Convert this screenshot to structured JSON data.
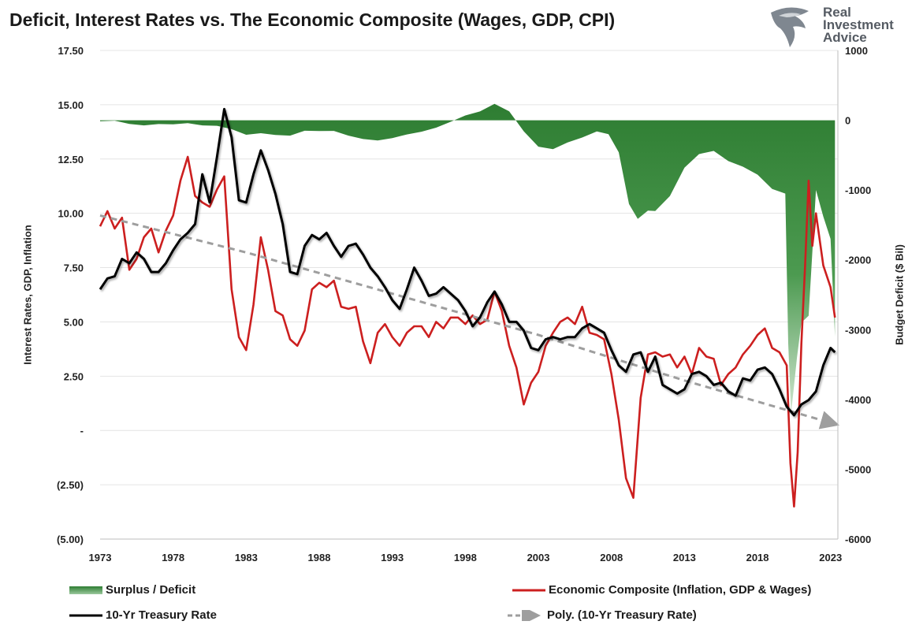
{
  "title": "Deficit, Interest Rates vs. The Economic Composite (Wages, GDP, CPI)",
  "logo": {
    "line1": "Real",
    "line2": "Investment",
    "line3": "Advice",
    "icon": "eagle-head-icon"
  },
  "colors": {
    "deficit": "#2e7d32",
    "economic": "#cc1f1f",
    "treasury": "#000000",
    "poly": "#9e9e9e"
  },
  "chart_data": {
    "type": "line",
    "title": "Deficit, Interest Rates vs. The Economic Composite (Wages, GDP, CPI)",
    "ylabel": "Interest Rates, GDP, Inflation",
    "y2label": "Budget Deficit ($ Bil)",
    "xlim": [
      1973,
      2023.5
    ],
    "ylim": [
      -5,
      17.5
    ],
    "y2lim": [
      -6000,
      1000
    ],
    "x_ticks": [
      "1973",
      "1978",
      "1983",
      "1988",
      "1993",
      "1998",
      "2003",
      "2008",
      "2013",
      "2018",
      "2023"
    ],
    "y_ticks": [
      "17.50",
      "15.00",
      "12.50",
      "10.00",
      "7.50",
      "5.00",
      "2.50",
      "-",
      "(2.50)",
      "(5.00)"
    ],
    "y2_ticks": [
      "1000",
      "0",
      "-1000",
      "-2000",
      "-3000",
      "-4000",
      "-5000",
      "-6000"
    ],
    "grid": true,
    "legend_position": "bottom",
    "series": [
      {
        "name": "Surplus / Deficit",
        "type": "area",
        "axis": "right",
        "x": [
          1973,
          1974,
          1975,
          1976,
          1977,
          1978,
          1979,
          1980,
          1981,
          1982,
          1983,
          1984,
          1985,
          1986,
          1987,
          1988,
          1989,
          1990,
          1991,
          1992,
          1993,
          1994,
          1995,
          1996,
          1997,
          1998,
          1999,
          2000,
          2001,
          2002,
          2003,
          2004,
          2005,
          2006,
          2007,
          2007.8,
          2008.5,
          2009.2,
          2009.8,
          2010.5,
          2011,
          2012,
          2013,
          2014,
          2015,
          2016,
          2017,
          2018,
          2019,
          2019.9,
          2020.1,
          2020.3,
          2020.7,
          2021,
          2021.5,
          2022,
          2022.5,
          2023,
          2023.3
        ],
        "values": [
          -15,
          -6,
          -53,
          -74,
          -54,
          -59,
          -41,
          -74,
          -79,
          -128,
          -208,
          -185,
          -212,
          -221,
          -150,
          -155,
          -153,
          -221,
          -269,
          -290,
          -255,
          -203,
          -164,
          -107,
          -22,
          69,
          126,
          236,
          128,
          -158,
          -378,
          -413,
          -318,
          -248,
          -161,
          -200,
          -459,
          -1200,
          -1413,
          -1294,
          -1300,
          -1087,
          -680,
          -485,
          -439,
          -585,
          -665,
          -779,
          -984,
          -1050,
          -3200,
          -4200,
          -3400,
          -2900,
          -2800,
          -1000,
          -1380,
          -1700,
          -3100
        ]
      },
      {
        "name": "Economic Composite (Inflation, GDP & Wages)",
        "type": "line",
        "axis": "left",
        "x": [
          1973,
          1973.5,
          1974,
          1974.5,
          1975,
          1975.5,
          1976,
          1976.5,
          1977,
          1977.5,
          1978,
          1978.5,
          1979,
          1979.5,
          1980,
          1980.5,
          1981,
          1981.5,
          1982,
          1982.5,
          1983,
          1983.5,
          1984,
          1984.5,
          1985,
          1985.5,
          1986,
          1986.5,
          1987,
          1987.5,
          1988,
          1988.5,
          1989,
          1989.5,
          1990,
          1990.5,
          1991,
          1991.5,
          1992,
          1992.5,
          1993,
          1993.5,
          1994,
          1994.5,
          1995,
          1995.5,
          1996,
          1996.5,
          1997,
          1997.5,
          1998,
          1998.5,
          1999,
          1999.5,
          2000,
          2000.5,
          2001,
          2001.5,
          2002,
          2002.5,
          2003,
          2003.5,
          2004,
          2004.5,
          2005,
          2005.5,
          2006,
          2006.5,
          2007,
          2007.5,
          2008,
          2008.5,
          2009,
          2009.5,
          2010,
          2010.5,
          2011,
          2011.5,
          2012,
          2012.5,
          2013,
          2013.5,
          2014,
          2014.5,
          2015,
          2015.5,
          2016,
          2016.5,
          2017,
          2017.5,
          2018,
          2018.5,
          2019,
          2019.5,
          2020,
          2020.25,
          2020.5,
          2020.75,
          2021,
          2021.25,
          2021.5,
          2021.75,
          2022,
          2022.5,
          2023,
          2023.3
        ],
        "values": [
          9.4,
          10.1,
          9.3,
          9.8,
          7.4,
          7.9,
          8.9,
          9.3,
          8.2,
          9.2,
          9.9,
          11.5,
          12.6,
          10.8,
          10.5,
          10.3,
          11.1,
          11.7,
          6.5,
          4.3,
          3.7,
          5.8,
          8.9,
          7.4,
          5.5,
          5.3,
          4.2,
          3.9,
          4.6,
          6.5,
          6.8,
          6.6,
          6.9,
          5.7,
          5.6,
          5.7,
          4.1,
          3.1,
          4.5,
          4.9,
          4.3,
          3.9,
          4.5,
          4.8,
          4.8,
          4.3,
          5.0,
          4.7,
          5.2,
          5.2,
          4.9,
          5.3,
          4.9,
          5.1,
          6.4,
          5.5,
          3.9,
          2.9,
          1.2,
          2.2,
          2.7,
          3.9,
          4.5,
          5.0,
          5.2,
          4.9,
          5.7,
          4.5,
          4.4,
          4.2,
          2.6,
          0.5,
          -2.2,
          -3.1,
          1.5,
          3.5,
          3.6,
          3.4,
          3.5,
          2.9,
          3.4,
          2.6,
          3.8,
          3.4,
          3.3,
          2.1,
          2.6,
          2.9,
          3.5,
          3.9,
          4.4,
          4.7,
          3.8,
          3.6,
          3.0,
          -1.5,
          -3.5,
          -1.0,
          4.0,
          7.5,
          11.5,
          8.5,
          10.0,
          7.6,
          6.6,
          5.2
        ]
      },
      {
        "name": "10-Yr Treasury Rate",
        "type": "line",
        "axis": "left",
        "x": [
          1973,
          1973.5,
          1974,
          1974.5,
          1975,
          1975.5,
          1976,
          1976.5,
          1977,
          1977.5,
          1978,
          1978.5,
          1979,
          1979.5,
          1980,
          1980.5,
          1981,
          1981.5,
          1982,
          1982.5,
          1983,
          1983.5,
          1984,
          1984.5,
          1985,
          1985.5,
          1986,
          1986.5,
          1987,
          1987.5,
          1988,
          1988.5,
          1989,
          1989.5,
          1990,
          1990.5,
          1991,
          1991.5,
          1992,
          1992.5,
          1993,
          1993.5,
          1994,
          1994.5,
          1995,
          1995.5,
          1996,
          1996.5,
          1997,
          1997.5,
          1998,
          1998.5,
          1999,
          1999.5,
          2000,
          2000.5,
          2001,
          2001.5,
          2002,
          2002.5,
          2003,
          2003.5,
          2004,
          2004.5,
          2005,
          2005.5,
          2006,
          2006.5,
          2007,
          2007.5,
          2008,
          2008.5,
          2009,
          2009.5,
          2010,
          2010.5,
          2011,
          2011.5,
          2012,
          2012.5,
          2013,
          2013.5,
          2014,
          2014.5,
          2015,
          2015.5,
          2016,
          2016.5,
          2017,
          2017.5,
          2018,
          2018.5,
          2019,
          2019.5,
          2020,
          2020.5,
          2021,
          2021.5,
          2022,
          2022.5,
          2023,
          2023.3
        ],
        "values": [
          6.5,
          7.0,
          7.1,
          7.9,
          7.7,
          8.2,
          7.9,
          7.3,
          7.3,
          7.7,
          8.3,
          8.8,
          9.1,
          9.5,
          11.8,
          10.5,
          12.6,
          14.8,
          13.5,
          10.6,
          10.5,
          11.8,
          12.9,
          12.0,
          10.9,
          9.5,
          7.3,
          7.2,
          8.5,
          9.0,
          8.8,
          9.1,
          8.5,
          8.0,
          8.5,
          8.6,
          8.1,
          7.5,
          7.1,
          6.6,
          6.0,
          5.6,
          6.5,
          7.5,
          6.9,
          6.2,
          6.3,
          6.6,
          6.3,
          6.0,
          5.5,
          4.8,
          5.2,
          5.9,
          6.4,
          5.8,
          5.0,
          5.0,
          4.6,
          3.8,
          3.7,
          4.2,
          4.3,
          4.2,
          4.3,
          4.3,
          4.7,
          4.9,
          4.7,
          4.5,
          3.7,
          3.0,
          2.7,
          3.5,
          3.6,
          2.7,
          3.4,
          2.1,
          1.9,
          1.7,
          1.9,
          2.6,
          2.7,
          2.5,
          2.1,
          2.2,
          1.8,
          1.6,
          2.4,
          2.3,
          2.8,
          2.9,
          2.6,
          1.9,
          1.1,
          0.7,
          1.2,
          1.4,
          1.8,
          3.0,
          3.8,
          3.6
        ]
      },
      {
        "name": "Poly. (10-Yr Treasury Rate)",
        "type": "trendline",
        "axis": "left",
        "x": [
          1973,
          1983,
          1993,
          2003,
          2013,
          2023.3
        ],
        "values": [
          9.9,
          8.2,
          6.3,
          4.4,
          2.3,
          0.3
        ]
      }
    ]
  },
  "legend": [
    {
      "label": "Surplus / Deficit",
      "swatch": "area"
    },
    {
      "label": "Economic Composite (Inflation, GDP & Wages)",
      "swatch": "red-line"
    },
    {
      "label": "10-Yr Treasury Rate",
      "swatch": "black-line"
    },
    {
      "label": "Poly. (10-Yr Treasury Rate)",
      "swatch": "dashed-arrow"
    }
  ]
}
